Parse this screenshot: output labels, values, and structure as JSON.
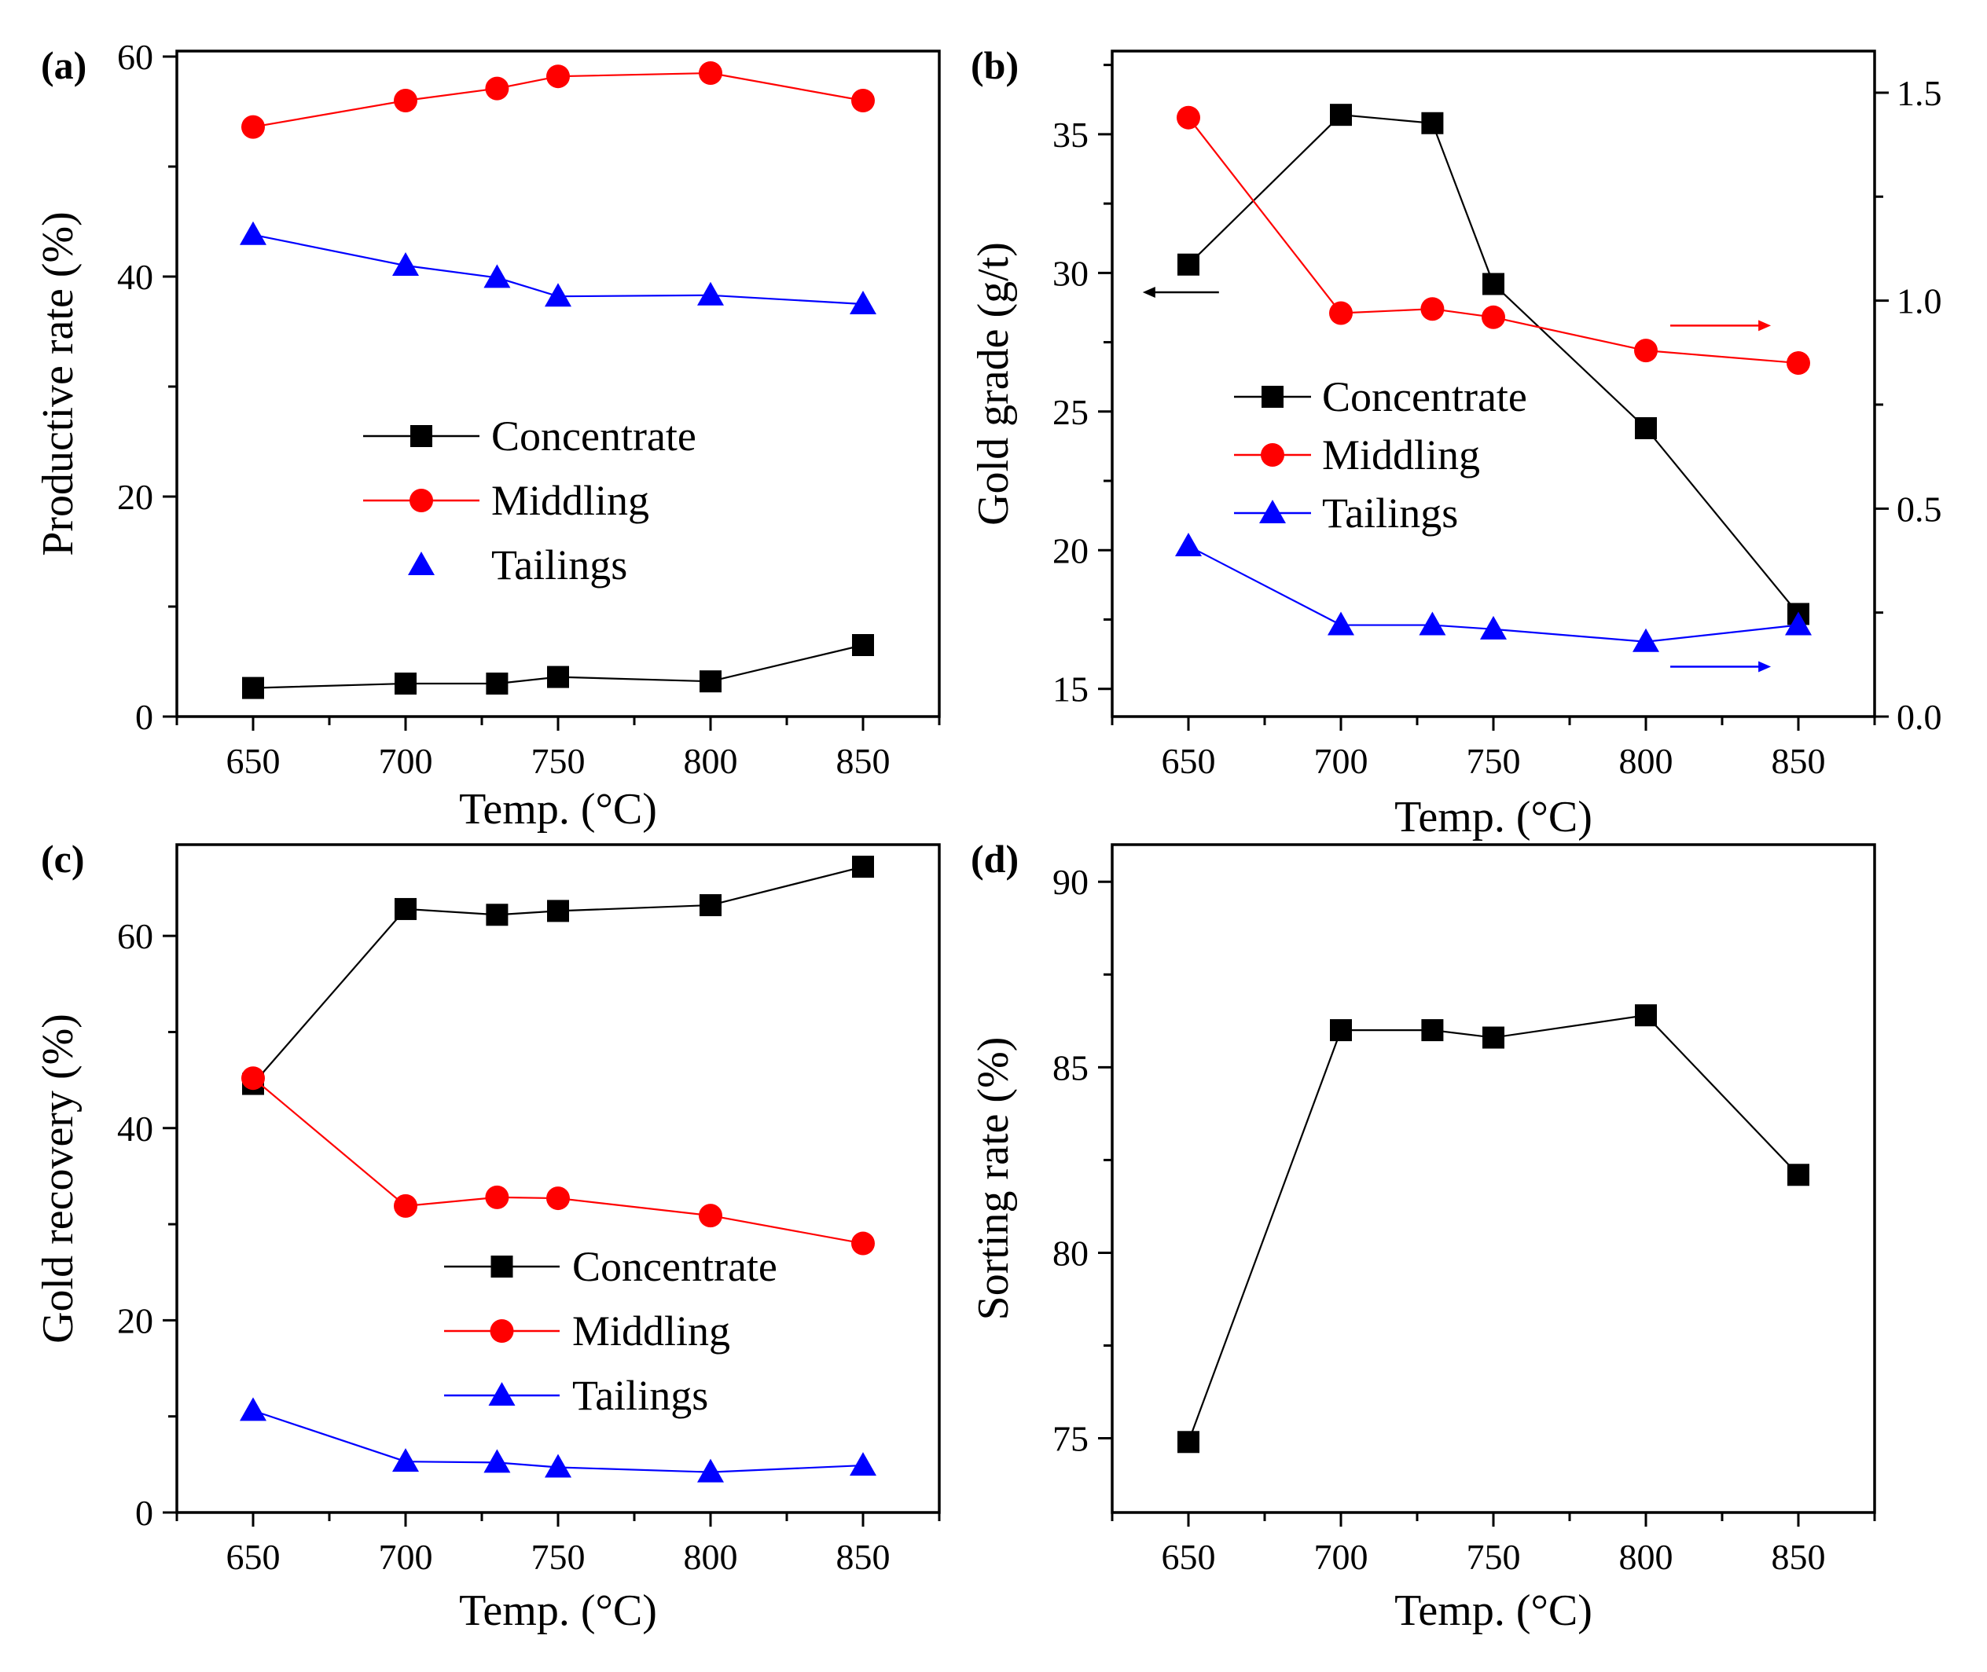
{
  "chart_data": [
    {
      "panel": "(a)",
      "type": "line",
      "x": [
        650,
        700,
        730,
        750,
        800,
        850
      ],
      "xlim": [
        625,
        875
      ],
      "xticks": [
        650,
        700,
        750,
        800,
        850
      ],
      "ylim": [
        0,
        60.5
      ],
      "yticks": [
        0,
        20,
        40,
        60
      ],
      "xlabel": "Temp. (°C)",
      "ylabel": "Productive rate (%)",
      "legend_position": "center",
      "series": [
        {
          "name": "Concentrate",
          "marker": "square",
          "color": "#000000",
          "values": [
            2.6,
            3.0,
            3.0,
            3.6,
            3.2,
            6.5
          ]
        },
        {
          "name": "Middling",
          "marker": "circle",
          "color": "#ff0000",
          "values": [
            53.6,
            56.0,
            57.1,
            58.2,
            58.5,
            56.0
          ]
        },
        {
          "name": "Tailings",
          "marker": "triangle",
          "color": "#0000ff",
          "values": [
            43.8,
            41.0,
            39.9,
            38.2,
            38.3,
            37.5
          ]
        }
      ]
    },
    {
      "panel": "(b)",
      "type": "line",
      "x": [
        650,
        700,
        730,
        750,
        800,
        850
      ],
      "xlim": [
        625,
        875
      ],
      "xticks": [
        650,
        700,
        750,
        800,
        850
      ],
      "ylim": [
        14,
        38
      ],
      "yticks": [
        15,
        20,
        25,
        30,
        35
      ],
      "y2lim": [
        0,
        1.6
      ],
      "y2ticks": [
        "0.0",
        "0.5",
        "1.0",
        "1.5"
      ],
      "xlabel": "Temp. (°C)",
      "ylabel": "Gold grade (g/t)",
      "legend_position": "center-left",
      "series": [
        {
          "name": "Concentrate",
          "marker": "square",
          "color": "#000000",
          "axis": "left",
          "values": [
            30.3,
            35.7,
            35.4,
            29.6,
            24.4,
            17.7
          ]
        },
        {
          "name": "Middling",
          "marker": "circle",
          "color": "#ff0000",
          "axis": "right",
          "values": [
            1.44,
            0.97,
            0.98,
            0.96,
            0.88,
            0.85
          ]
        },
        {
          "name": "Tailings",
          "marker": "triangle",
          "color": "#0000ff",
          "axis": "right",
          "values": [
            0.41,
            0.22,
            0.22,
            0.21,
            0.18,
            0.22
          ]
        }
      ]
    },
    {
      "panel": "(c)",
      "type": "line",
      "x": [
        650,
        700,
        730,
        750,
        800,
        850
      ],
      "xlim": [
        625,
        875
      ],
      "xticks": [
        650,
        700,
        750,
        800,
        850
      ],
      "ylim": [
        0,
        69.5
      ],
      "yticks": [
        0,
        20,
        40,
        60
      ],
      "xlabel": "Temp. (°C)",
      "ylabel": "Gold recovery (%)",
      "legend_position": "center",
      "series": [
        {
          "name": "Concentrate",
          "marker": "square",
          "color": "#000000",
          "values": [
            44.6,
            62.8,
            62.2,
            62.6,
            63.2,
            67.2
          ]
        },
        {
          "name": "Middling",
          "marker": "circle",
          "color": "#ff0000",
          "values": [
            45.2,
            31.9,
            32.8,
            32.7,
            30.9,
            28.0
          ]
        },
        {
          "name": "Tailings",
          "marker": "triangle",
          "color": "#0000ff",
          "values": [
            10.6,
            5.3,
            5.2,
            4.7,
            4.2,
            4.9
          ]
        }
      ]
    },
    {
      "panel": "(d)",
      "type": "line",
      "x": [
        650,
        700,
        730,
        750,
        800,
        850
      ],
      "xlim": [
        625,
        875
      ],
      "xticks": [
        650,
        700,
        750,
        800,
        850
      ],
      "ylim": [
        73,
        91
      ],
      "yticks": [
        75,
        80,
        85,
        90
      ],
      "xlabel": "Temp. (°C)",
      "ylabel": "Sorting rate (%)",
      "series": [
        {
          "marker": "square",
          "color": "#000000",
          "values": [
            74.9,
            86.0,
            86.0,
            85.8,
            86.4,
            82.1
          ]
        }
      ]
    }
  ]
}
